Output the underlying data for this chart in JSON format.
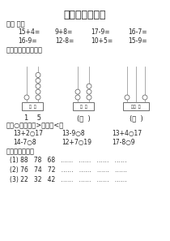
{
  "title": "一年级期中测试",
  "section1_label": "一、 口算",
  "section1_row1": [
    "15+4=",
    "9+8=",
    "17-9=",
    "16-7="
  ],
  "section1_row2": [
    "16-9=",
    "12-8=",
    "10+5=",
    "15-9="
  ],
  "section2_label": "二、画一画，填一填",
  "section3_label": "三在○里填上」>「或」<「",
  "section3_row1": [
    "13+2○17",
    "13-9○8",
    "13+4○17"
  ],
  "section3_row2": [
    "14-7○8",
    "12+7○19",
    "17-8○9"
  ],
  "section4_label": "四、按规律填空",
  "section4_rows": [
    "(1) 88   78   68   ……   ……   ……   ……",
    "(2) 76   74   72   ……   ……   ……   ……",
    "(3) 22   32   42   ……   ……   ……   ……"
  ],
  "abacus1_tens_beads": 1,
  "abacus1_ones_beads": 5,
  "abacus1_value": "1    5",
  "abacus2_tens_beads": 2,
  "abacus2_ones_beads": 3,
  "abacus3_hundreds_beads": 1,
  "abacus3_tens_beads": 0,
  "abacus3_ones_beads": 1,
  "bg_color": "#ffffff",
  "text_color": "#222222",
  "title_fontsize": 9,
  "body_fontsize": 5.5,
  "label_fontsize": 6
}
